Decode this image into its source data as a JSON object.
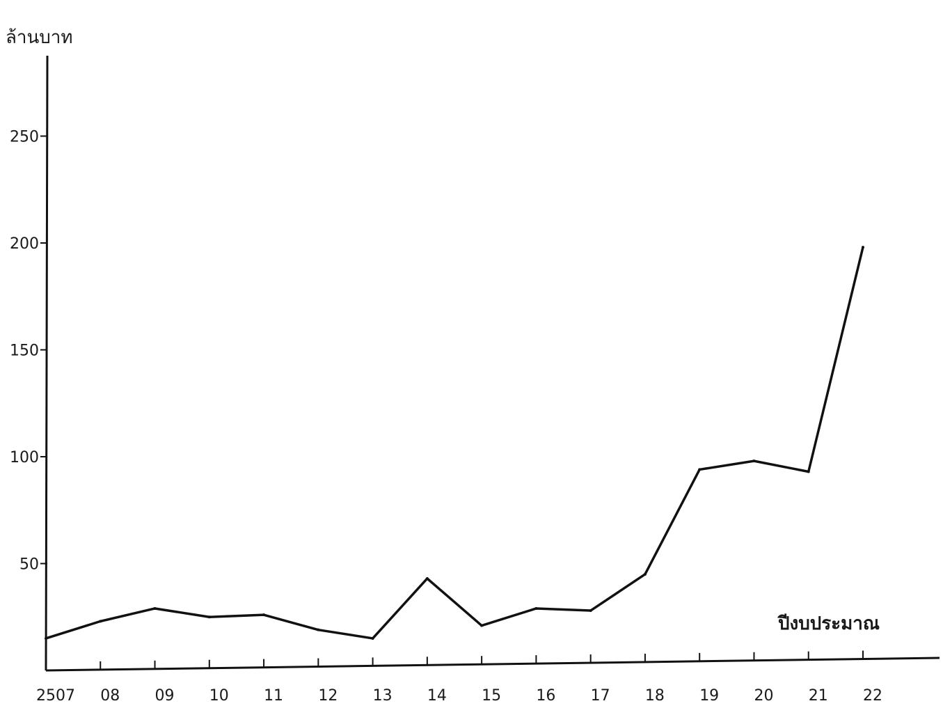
{
  "chart_data": {
    "type": "line",
    "title": "",
    "ylabel": "ล้านบาท",
    "xlabel": "ปีงบประมาณ",
    "x_tick_labels": [
      "2507",
      "08",
      "09",
      "10",
      "11",
      "12",
      "13",
      "14",
      "15",
      "16",
      "17",
      "18",
      "19",
      "20",
      "21",
      "22"
    ],
    "y_ticks": [
      50,
      100,
      150,
      200,
      250
    ],
    "ylim": [
      0,
      275
    ],
    "grid": false,
    "series": [
      {
        "values": [
          15,
          23,
          29,
          25,
          26,
          19,
          15,
          43,
          21,
          29,
          28,
          45,
          94,
          98,
          93,
          198
        ]
      }
    ],
    "colors": {
      "line": "#111111",
      "axis": "#111111",
      "baseline": "#111111"
    }
  }
}
